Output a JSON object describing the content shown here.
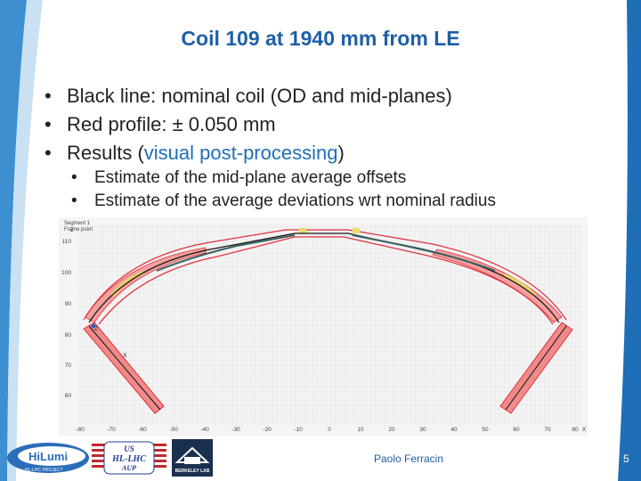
{
  "slide": {
    "title": "Coil 109 at 1940 mm from LE",
    "bullets": [
      "Black line: nominal coil (OD and mid-planes)",
      "Red profile: ± 0.050 mm"
    ],
    "results_prefix": "Results (",
    "results_highlight": "visual post-processing",
    "results_suffix": ")",
    "sub_bullets": [
      "Estimate of the mid-plane average offsets",
      "Estimate of the average deviations wrt nominal radius"
    ]
  },
  "plot": {
    "header_line1": "Segment 1",
    "header_line2": "Frame point",
    "axis_x_label": "X",
    "axis_z_label": "Z",
    "x_ticks": [
      "-80",
      "-70",
      "-60",
      "-50",
      "-40",
      "-30",
      "-20",
      "-10",
      "0",
      "10",
      "20",
      "30",
      "40",
      "50",
      "60",
      "70",
      "80"
    ],
    "y_ticks": [
      "110",
      "100",
      "90",
      "80",
      "70",
      "60"
    ],
    "markers": {
      "z": "Z",
      "x": "X"
    },
    "colors": {
      "nominal": "#111111",
      "profile": "#e0303a",
      "fill": "#f08a8a",
      "highlight": "#e8e060"
    }
  },
  "footer": {
    "author": "Paolo Ferracin",
    "page": "5",
    "logos": {
      "hilumi_main": "HiLumi",
      "hilumi_sub": "HL-LHC PROJECT",
      "us_line1": "US",
      "us_line2": "HL-LHC",
      "us_line3": "AUP",
      "berkeley": "BERKELEY LAB"
    }
  }
}
